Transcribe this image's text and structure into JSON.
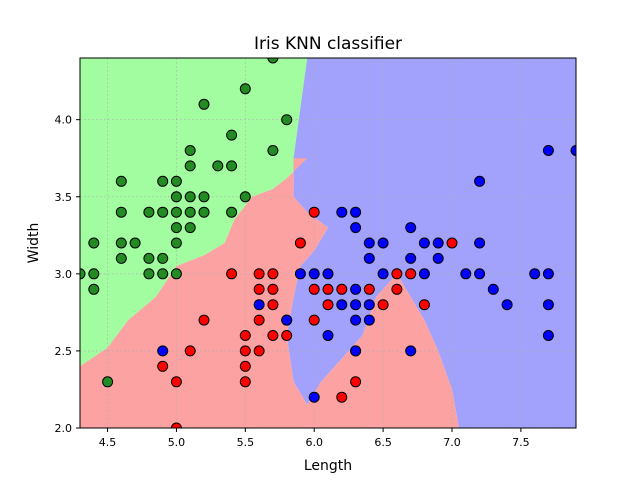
{
  "chart_data": {
    "type": "scatter",
    "title": "Iris KNN classifier",
    "xlabel": "Length",
    "ylabel": "Width",
    "xlim": [
      4.3,
      7.9
    ],
    "ylim": [
      2.0,
      4.4
    ],
    "xticks": [
      "4.5",
      "5.0",
      "5.5",
      "6.0",
      "6.5",
      "7.0",
      "7.5"
    ],
    "yticks": [
      "2.0",
      "2.5",
      "3.0",
      "3.5",
      "4.0"
    ],
    "grid": true,
    "region_colors": {
      "green": "#a2fca0",
      "red": "#fca2a2",
      "blue": "#a2a2fc"
    },
    "point_colors": {
      "green": "#228b22",
      "red": "#ff0000",
      "blue": "#0000ff"
    },
    "regions": [
      {
        "class": "green",
        "polygon": [
          [
            4.3,
            4.4
          ],
          [
            5.95,
            4.4
          ],
          [
            5.95,
            3.75
          ],
          [
            5.8,
            3.62
          ],
          [
            5.7,
            3.55
          ],
          [
            5.55,
            3.5
          ],
          [
            5.42,
            3.35
          ],
          [
            5.35,
            3.2
          ],
          [
            5.2,
            3.12
          ],
          [
            5.0,
            3.05
          ],
          [
            4.85,
            2.85
          ],
          [
            4.65,
            2.7
          ],
          [
            4.5,
            2.52
          ],
          [
            4.3,
            2.4
          ]
        ]
      },
      {
        "class": "blue",
        "polygon": [
          [
            5.95,
            4.4
          ],
          [
            7.9,
            4.4
          ],
          [
            7.9,
            2.0
          ],
          [
            7.05,
            2.0
          ],
          [
            7.0,
            2.25
          ],
          [
            6.9,
            2.5
          ],
          [
            6.8,
            2.7
          ],
          [
            6.7,
            2.85
          ],
          [
            6.6,
            3.0
          ],
          [
            6.45,
            2.85
          ],
          [
            6.35,
            2.6
          ],
          [
            6.2,
            2.45
          ],
          [
            6.05,
            2.3
          ],
          [
            5.95,
            2.15
          ],
          [
            5.85,
            2.3
          ],
          [
            5.8,
            2.6
          ],
          [
            5.85,
            2.85
          ],
          [
            5.9,
            3.05
          ],
          [
            6.0,
            3.15
          ],
          [
            6.1,
            3.3
          ],
          [
            5.95,
            3.4
          ],
          [
            5.85,
            3.5
          ],
          [
            5.85,
            3.75
          ]
        ]
      },
      {
        "class": "red",
        "polygon": [
          [
            4.3,
            2.4
          ],
          [
            4.5,
            2.52
          ],
          [
            4.65,
            2.7
          ],
          [
            4.85,
            2.85
          ],
          [
            5.0,
            3.05
          ],
          [
            5.2,
            3.12
          ],
          [
            5.35,
            3.2
          ],
          [
            5.42,
            3.35
          ],
          [
            5.55,
            3.5
          ],
          [
            5.7,
            3.55
          ],
          [
            5.8,
            3.62
          ],
          [
            5.95,
            3.75
          ],
          [
            5.85,
            3.75
          ],
          [
            5.85,
            3.5
          ],
          [
            5.95,
            3.4
          ],
          [
            6.1,
            3.3
          ],
          [
            6.0,
            3.15
          ],
          [
            5.9,
            3.05
          ],
          [
            5.85,
            2.85
          ],
          [
            5.8,
            2.6
          ],
          [
            5.85,
            2.3
          ],
          [
            5.95,
            2.15
          ],
          [
            6.05,
            2.3
          ],
          [
            6.2,
            2.45
          ],
          [
            6.35,
            2.6
          ],
          [
            6.45,
            2.85
          ],
          [
            6.6,
            3.0
          ],
          [
            6.7,
            2.85
          ],
          [
            6.8,
            2.7
          ],
          [
            6.9,
            2.5
          ],
          [
            7.0,
            2.25
          ],
          [
            7.05,
            2.0
          ],
          [
            4.3,
            2.0
          ]
        ]
      }
    ],
    "series": [
      {
        "class": "green",
        "points": [
          [
            5.7,
            4.4
          ],
          [
            5.5,
            4.2
          ],
          [
            5.2,
            4.1
          ],
          [
            5.8,
            4.0
          ],
          [
            5.4,
            3.9
          ],
          [
            5.1,
            3.8
          ],
          [
            5.7,
            3.8
          ],
          [
            5.1,
            3.7
          ],
          [
            5.3,
            3.7
          ],
          [
            5.4,
            3.7
          ],
          [
            4.6,
            3.6
          ],
          [
            4.9,
            3.6
          ],
          [
            5.0,
            3.6
          ],
          [
            5.0,
            3.5
          ],
          [
            5.1,
            3.5
          ],
          [
            5.2,
            3.5
          ],
          [
            5.5,
            3.5
          ],
          [
            4.6,
            3.4
          ],
          [
            4.8,
            3.4
          ],
          [
            5.0,
            3.4
          ],
          [
            5.1,
            3.4
          ],
          [
            5.2,
            3.4
          ],
          [
            5.4,
            3.4
          ],
          [
            4.9,
            3.4
          ],
          [
            5.0,
            3.3
          ],
          [
            5.1,
            3.3
          ],
          [
            4.7,
            3.2
          ],
          [
            4.4,
            3.2
          ],
          [
            4.6,
            3.2
          ],
          [
            5.0,
            3.2
          ],
          [
            4.6,
            3.1
          ],
          [
            4.8,
            3.1
          ],
          [
            4.9,
            3.1
          ],
          [
            4.3,
            3.0
          ],
          [
            4.4,
            3.0
          ],
          [
            4.8,
            3.0
          ],
          [
            4.9,
            3.0
          ],
          [
            5.0,
            3.0
          ],
          [
            4.4,
            2.9
          ],
          [
            4.5,
            2.3
          ]
        ]
      },
      {
        "class": "red",
        "points": [
          [
            6.0,
            3.4
          ],
          [
            5.9,
            3.2
          ],
          [
            7.0,
            3.2
          ],
          [
            5.4,
            3.0
          ],
          [
            5.6,
            3.0
          ],
          [
            5.7,
            3.0
          ],
          [
            6.6,
            3.0
          ],
          [
            6.7,
            3.0
          ],
          [
            5.6,
            2.9
          ],
          [
            5.7,
            2.9
          ],
          [
            6.0,
            2.9
          ],
          [
            6.1,
            2.9
          ],
          [
            6.2,
            2.9
          ],
          [
            6.6,
            2.9
          ],
          [
            6.4,
            2.9
          ],
          [
            6.1,
            2.8
          ],
          [
            6.5,
            2.8
          ],
          [
            6.8,
            2.8
          ],
          [
            5.7,
            2.8
          ],
          [
            5.8,
            2.7
          ],
          [
            6.0,
            2.7
          ],
          [
            5.2,
            2.7
          ],
          [
            5.6,
            2.7
          ],
          [
            5.5,
            2.6
          ],
          [
            5.7,
            2.6
          ],
          [
            5.8,
            2.6
          ],
          [
            5.5,
            2.5
          ],
          [
            5.6,
            2.5
          ],
          [
            6.3,
            2.5
          ],
          [
            5.1,
            2.5
          ],
          [
            5.5,
            2.4
          ],
          [
            4.9,
            2.4
          ],
          [
            5.5,
            2.3
          ],
          [
            5.0,
            2.3
          ],
          [
            6.3,
            2.3
          ],
          [
            6.2,
            2.2
          ],
          [
            5.0,
            2.0
          ]
        ]
      },
      {
        "class": "blue",
        "points": [
          [
            7.7,
            3.8
          ],
          [
            7.9,
            3.8
          ],
          [
            7.2,
            3.6
          ],
          [
            6.2,
            3.4
          ],
          [
            6.3,
            3.4
          ],
          [
            6.3,
            3.3
          ],
          [
            6.7,
            3.3
          ],
          [
            6.4,
            3.2
          ],
          [
            6.5,
            3.2
          ],
          [
            6.8,
            3.2
          ],
          [
            6.9,
            3.2
          ],
          [
            7.2,
            3.2
          ],
          [
            6.4,
            3.1
          ],
          [
            6.7,
            3.1
          ],
          [
            6.9,
            3.1
          ],
          [
            5.9,
            3.0
          ],
          [
            6.0,
            3.0
          ],
          [
            6.1,
            3.0
          ],
          [
            6.5,
            3.0
          ],
          [
            6.8,
            3.0
          ],
          [
            7.1,
            3.0
          ],
          [
            7.2,
            3.0
          ],
          [
            7.6,
            3.0
          ],
          [
            7.7,
            3.0
          ],
          [
            6.3,
            2.9
          ],
          [
            7.3,
            2.9
          ],
          [
            5.6,
            2.8
          ],
          [
            6.2,
            2.8
          ],
          [
            6.3,
            2.8
          ],
          [
            6.4,
            2.8
          ],
          [
            7.4,
            2.8
          ],
          [
            7.7,
            2.8
          ],
          [
            5.8,
            2.7
          ],
          [
            6.3,
            2.7
          ],
          [
            6.4,
            2.7
          ],
          [
            6.1,
            2.6
          ],
          [
            7.7,
            2.6
          ],
          [
            4.9,
            2.5
          ],
          [
            6.3,
            2.5
          ],
          [
            6.7,
            2.5
          ],
          [
            6.0,
            2.2
          ]
        ]
      }
    ]
  }
}
